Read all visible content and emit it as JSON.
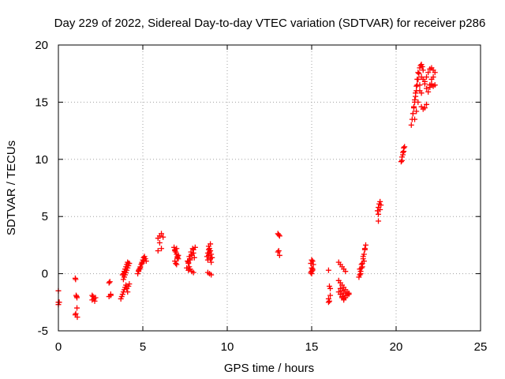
{
  "chart_data": {
    "type": "scatter",
    "title": "Day 229 of 2022, Sidereal Day-to-day VTEC variation (SDTVAR) for receiver p286",
    "xlabel": "GPS time / hours",
    "ylabel": "SDTVAR / TECUs",
    "xlim": [
      0,
      25
    ],
    "ylim": [
      -5,
      20
    ],
    "xticks": [
      0,
      5,
      10,
      15,
      20,
      25
    ],
    "yticks": [
      -5,
      0,
      5,
      10,
      15,
      20
    ],
    "xtick_labels": [
      "0",
      "5",
      "10",
      "15",
      "20",
      "25"
    ],
    "ytick_labels": [
      "-5",
      "0",
      "5",
      "10",
      "15",
      "20"
    ],
    "grid": true,
    "marker": "plus",
    "series": [
      {
        "name": "SDTVAR p286",
        "color": "#ff0000",
        "x": [
          0.0,
          0.0,
          0.0,
          0.05,
          1.0,
          1.02,
          1.05,
          1.08,
          1.1,
          1.1,
          1.12,
          1.0,
          1.03,
          2.0,
          2.05,
          2.1,
          2.15,
          2.2,
          2.0,
          3.0,
          3.05,
          3.1,
          3.0,
          3.1,
          3.7,
          3.75,
          3.8,
          3.85,
          3.9,
          3.95,
          4.0,
          4.05,
          4.1,
          4.15,
          4.2,
          3.8,
          3.85,
          3.9,
          3.95,
          4.0,
          4.05,
          4.1,
          4.15,
          3.85,
          3.9,
          3.95,
          4.0,
          4.05,
          4.1,
          4.15,
          4.2,
          4.7,
          4.75,
          4.8,
          4.85,
          4.9,
          4.95,
          5.0,
          5.05,
          5.1,
          5.15,
          5.2,
          4.75,
          4.85,
          4.95,
          5.05,
          5.9,
          6.0,
          6.1,
          6.2,
          6.0,
          6.1,
          5.9,
          6.85,
          6.9,
          6.95,
          7.0,
          7.05,
          7.1,
          6.9,
          6.95,
          7.0,
          7.05,
          6.9,
          7.0,
          7.1,
          7.6,
          7.7,
          7.8,
          7.9,
          8.0,
          8.1,
          7.65,
          7.75,
          7.85,
          7.95,
          8.05,
          7.7,
          7.8,
          7.9,
          8.0,
          7.7,
          7.8,
          7.9,
          8.0,
          7.75,
          8.8,
          8.85,
          8.9,
          8.95,
          9.0,
          9.05,
          9.1,
          8.85,
          8.9,
          8.95,
          9.0,
          9.05,
          8.85,
          8.95,
          9.05,
          8.9,
          9.0,
          13.0,
          13.05,
          13.1,
          13.0,
          13.05,
          13.1,
          14.95,
          15.0,
          15.05,
          15.1,
          15.0,
          15.05,
          14.95,
          15.0,
          15.05,
          15.0,
          16.0,
          16.05,
          16.1,
          16.0,
          16.05,
          16.0,
          16.1,
          16.6,
          16.7,
          16.8,
          16.9,
          17.0,
          16.6,
          16.7,
          16.8,
          16.9,
          17.0,
          17.1,
          17.2,
          16.6,
          16.7,
          16.8,
          16.9,
          17.0,
          17.1,
          17.2,
          16.7,
          16.8,
          16.9,
          17.0,
          16.8,
          16.9,
          17.8,
          17.85,
          17.9,
          17.95,
          18.0,
          18.05,
          18.1,
          18.15,
          18.2,
          17.85,
          17.95,
          18.05,
          18.15,
          17.9,
          18.0,
          18.1,
          18.9,
          18.95,
          19.0,
          19.05,
          19.1,
          18.95,
          19.05,
          18.95,
          20.3,
          20.35,
          20.4,
          20.45,
          20.5,
          20.35,
          20.45,
          20.4,
          20.9,
          20.95,
          21.0,
          21.05,
          21.1,
          21.15,
          21.2,
          21.25,
          21.3,
          21.35,
          21.4,
          21.45,
          21.5,
          21.55,
          21.6,
          21.0,
          21.05,
          21.1,
          21.15,
          21.2,
          21.25,
          21.3,
          21.1,
          21.2,
          21.3,
          21.4,
          21.5,
          21.6,
          21.7,
          21.8,
          21.9,
          22.0,
          21.5,
          21.6,
          21.7,
          21.8,
          21.7,
          21.8,
          21.9,
          22.0,
          22.1,
          22.2,
          22.3,
          22.0,
          22.1,
          22.2,
          22.3,
          22.1,
          22.2,
          21.4,
          21.5
        ],
        "y": [
          -1.5,
          -2.5,
          -2.7,
          -2.5,
          -0.4,
          -0.5,
          -1.9,
          -2.0,
          -2.1,
          -3.0,
          -3.8,
          -3.6,
          -3.5,
          -1.9,
          -2.0,
          -2.2,
          -2.4,
          -2.1,
          -2.3,
          -0.8,
          -0.7,
          -1.8,
          -2.0,
          -1.9,
          -2.2,
          -2.0,
          -1.8,
          -1.6,
          -1.4,
          -1.2,
          -1.0,
          -1.3,
          -1.6,
          -1.1,
          -0.9,
          -0.1,
          0.0,
          0.2,
          0.4,
          0.6,
          0.8,
          1.0,
          0.9,
          -0.5,
          -0.3,
          -0.1,
          0.1,
          0.3,
          0.5,
          0.7,
          0.9,
          0.0,
          0.2,
          0.4,
          0.6,
          0.8,
          1.0,
          1.2,
          1.4,
          1.5,
          1.3,
          1.1,
          0.3,
          0.5,
          0.9,
          1.1,
          3.1,
          3.3,
          3.5,
          3.2,
          2.7,
          2.2,
          2.0,
          2.3,
          2.1,
          1.9,
          1.7,
          1.5,
          1.3,
          1.1,
          0.9,
          0.8,
          1.4,
          2.0,
          2.2,
          1.6,
          0.5,
          0.9,
          1.3,
          1.7,
          2.1,
          2.3,
          1.1,
          1.5,
          1.9,
          2.2,
          1.4,
          0.3,
          0.4,
          0.2,
          0.1,
          1.0,
          1.2,
          1.6,
          1.8,
          0.6,
          1.5,
          1.8,
          2.1,
          2.2,
          2.0,
          1.7,
          1.4,
          1.2,
          1.6,
          1.9,
          1.3,
          1.0,
          0.1,
          0.0,
          -0.1,
          2.4,
          2.6,
          3.5,
          3.4,
          3.3,
          1.9,
          2.0,
          1.6,
          0.9,
          1.2,
          1.1,
          0.8,
          0.5,
          0.3,
          0.1,
          0.0,
          0.4,
          0.2,
          0.3,
          -1.1,
          -1.3,
          -2.2,
          -2.4,
          -2.5,
          -1.9,
          1.0,
          0.8,
          0.6,
          0.4,
          0.2,
          -0.6,
          -0.8,
          -1.0,
          -1.2,
          -1.4,
          -1.6,
          -1.8,
          -1.6,
          -1.8,
          -2.0,
          -2.2,
          -2.1,
          -1.9,
          -1.7,
          -1.3,
          -1.5,
          -1.7,
          -1.9,
          -2.1,
          -2.3,
          -0.3,
          -0.1,
          0.2,
          0.5,
          0.9,
          1.3,
          1.7,
          2.1,
          2.5,
          0.4,
          0.8,
          1.5,
          2.2,
          0.0,
          0.6,
          1.1,
          5.5,
          5.8,
          6.1,
          6.3,
          6.0,
          5.2,
          5.6,
          4.6,
          9.8,
          10.2,
          10.6,
          11.0,
          11.1,
          9.9,
          10.7,
          10.4,
          13.0,
          13.5,
          14.0,
          14.5,
          15.0,
          15.5,
          16.0,
          16.5,
          17.0,
          17.5,
          18.0,
          18.2,
          18.3,
          18.1,
          17.8,
          14.0,
          14.6,
          15.2,
          15.8,
          16.4,
          17.0,
          17.6,
          13.5,
          14.2,
          15.0,
          16.5,
          17.2,
          17.0,
          16.6,
          16.2,
          15.9,
          16.3,
          14.6,
          14.4,
          14.5,
          14.8,
          16.8,
          17.2,
          17.6,
          17.9,
          18.0,
          17.8,
          17.6,
          16.5,
          16.6,
          16.4,
          16.5,
          17.0,
          17.2,
          16.0,
          15.8
        ]
      }
    ]
  }
}
